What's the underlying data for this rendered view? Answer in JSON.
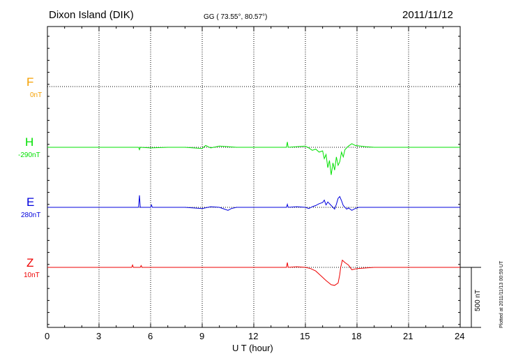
{
  "header": {
    "station": "Dixon Island (DIK)",
    "coords": "GG ( 73.55°,  80.57°)",
    "date": "2011/11/12"
  },
  "chart_data": {
    "type": "line",
    "xlabel": "U T (hour)",
    "xlim": [
      0,
      24
    ],
    "x_ticks": [
      "0",
      "3",
      "6",
      "9",
      "12",
      "15",
      "18",
      "21",
      "24"
    ],
    "grid": true,
    "scale_bar": "500 nT",
    "plotted_note": "Plotted at 2011/11/13 00:59 UT",
    "components": [
      {
        "name": "F",
        "base": "0nT",
        "color": "#f5a000",
        "points": []
      },
      {
        "name": "H",
        "base": "-290nT",
        "color": "#00e000",
        "points": [
          [
            0,
            0
          ],
          [
            5.3,
            0
          ],
          [
            5.35,
            -20
          ],
          [
            5.4,
            0
          ],
          [
            6,
            -5
          ],
          [
            7,
            0
          ],
          [
            8,
            0
          ],
          [
            9,
            -10
          ],
          [
            9.2,
            15
          ],
          [
            9.5,
            -5
          ],
          [
            10,
            10
          ],
          [
            10.5,
            5
          ],
          [
            11,
            0
          ],
          [
            12,
            0
          ],
          [
            13,
            0
          ],
          [
            13.9,
            0
          ],
          [
            13.95,
            45
          ],
          [
            14,
            0
          ],
          [
            14.5,
            5
          ],
          [
            15,
            10
          ],
          [
            15.2,
            -5
          ],
          [
            15.4,
            -25
          ],
          [
            15.6,
            -15
          ],
          [
            15.8,
            -40
          ],
          [
            16,
            -30
          ],
          [
            16.1,
            -95
          ],
          [
            16.2,
            -60
          ],
          [
            16.3,
            -170
          ],
          [
            16.4,
            -110
          ],
          [
            16.5,
            -230
          ],
          [
            16.6,
            -130
          ],
          [
            16.7,
            -190
          ],
          [
            16.8,
            -80
          ],
          [
            16.9,
            -150
          ],
          [
            17,
            -120
          ],
          [
            17.1,
            -40
          ],
          [
            17.2,
            -80
          ],
          [
            17.3,
            -20
          ],
          [
            17.5,
            10
          ],
          [
            17.7,
            30
          ],
          [
            17.9,
            15
          ],
          [
            18.2,
            10
          ],
          [
            18.5,
            5
          ],
          [
            19,
            0
          ],
          [
            20,
            0
          ],
          [
            21,
            0
          ],
          [
            22,
            0
          ],
          [
            23,
            0
          ],
          [
            24,
            0
          ]
        ]
      },
      {
        "name": "E",
        "base": "280nT",
        "color": "#0000dd",
        "points": [
          [
            0,
            0
          ],
          [
            5.3,
            0
          ],
          [
            5.35,
            100
          ],
          [
            5.4,
            0
          ],
          [
            6,
            0
          ],
          [
            6.05,
            20
          ],
          [
            6.1,
            0
          ],
          [
            7,
            0
          ],
          [
            8,
            0
          ],
          [
            8.5,
            -5
          ],
          [
            9,
            -10
          ],
          [
            9.5,
            5
          ],
          [
            10,
            0
          ],
          [
            10.3,
            -15
          ],
          [
            10.5,
            -25
          ],
          [
            10.7,
            -10
          ],
          [
            11,
            0
          ],
          [
            12,
            0
          ],
          [
            13,
            0
          ],
          [
            13.9,
            0
          ],
          [
            13.95,
            25
          ],
          [
            14,
            0
          ],
          [
            14.5,
            5
          ],
          [
            15,
            0
          ],
          [
            15.2,
            -10
          ],
          [
            15.4,
            5
          ],
          [
            15.6,
            15
          ],
          [
            15.8,
            30
          ],
          [
            16,
            40
          ],
          [
            16.1,
            60
          ],
          [
            16.2,
            20
          ],
          [
            16.3,
            45
          ],
          [
            16.5,
            15
          ],
          [
            16.7,
            -15
          ],
          [
            16.8,
            25
          ],
          [
            16.9,
            75
          ],
          [
            17,
            90
          ],
          [
            17.1,
            55
          ],
          [
            17.2,
            15
          ],
          [
            17.4,
            -15
          ],
          [
            17.5,
            -5
          ],
          [
            17.7,
            -25
          ],
          [
            17.9,
            -10
          ],
          [
            18.1,
            0
          ],
          [
            18.5,
            0
          ],
          [
            19,
            0
          ],
          [
            20,
            0
          ],
          [
            21,
            0
          ],
          [
            22,
            0
          ],
          [
            23,
            0
          ],
          [
            24,
            0
          ]
        ]
      },
      {
        "name": "Z",
        "base": "10nT",
        "color": "#ee0000",
        "points": [
          [
            0,
            0
          ],
          [
            4.9,
            0
          ],
          [
            4.95,
            20
          ],
          [
            5,
            0
          ],
          [
            5.4,
            0
          ],
          [
            5.45,
            15
          ],
          [
            5.5,
            0
          ],
          [
            6,
            0
          ],
          [
            7,
            0
          ],
          [
            8,
            0
          ],
          [
            9,
            0
          ],
          [
            10,
            0
          ],
          [
            11,
            0
          ],
          [
            12,
            0
          ],
          [
            13,
            0
          ],
          [
            13.9,
            0
          ],
          [
            13.95,
            40
          ],
          [
            14,
            0
          ],
          [
            14.5,
            5
          ],
          [
            15,
            0
          ],
          [
            15.3,
            -10
          ],
          [
            15.6,
            -30
          ],
          [
            15.9,
            -70
          ],
          [
            16.2,
            -110
          ],
          [
            16.5,
            -145
          ],
          [
            16.7,
            -150
          ],
          [
            16.9,
            -130
          ],
          [
            17,
            -60
          ],
          [
            17.05,
            0
          ],
          [
            17.15,
            60
          ],
          [
            17.3,
            40
          ],
          [
            17.5,
            20
          ],
          [
            17.7,
            -20
          ],
          [
            18,
            -10
          ],
          [
            18.5,
            -5
          ],
          [
            19,
            0
          ],
          [
            20,
            0
          ],
          [
            21,
            0
          ],
          [
            22,
            0
          ],
          [
            23,
            0
          ],
          [
            24,
            0
          ]
        ]
      }
    ]
  }
}
